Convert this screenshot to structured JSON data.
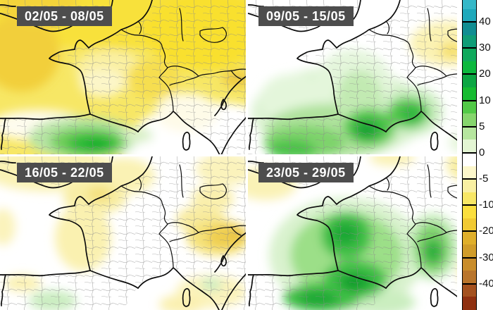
{
  "panels": [
    {
      "label": "02/05 - 08/05"
    },
    {
      "label": "09/05 - 15/05"
    },
    {
      "label": "16/05 - 22/05"
    },
    {
      "label": "23/05 - 29/05"
    }
  ],
  "panel_label_style": {
    "bg": "#4d4d4d",
    "fg": "#ffffff"
  },
  "colorbar": {
    "ticks": [
      "40",
      "30",
      "20",
      "10",
      "5",
      "0",
      "-5",
      "-10",
      "-20",
      "-30",
      "-40"
    ],
    "segments": [
      "#35B8C8",
      "#1FA9BB",
      "#108D92",
      "#0F9D77",
      "#0FA95C",
      "#0CB83E",
      "#0CA643",
      "#16BB31",
      "#52CA47",
      "#86D56D",
      "#B6E69F",
      "#E3F5D3",
      "#FFFFFF",
      "#FCF7CB",
      "#F9F0A3",
      "#F8E765",
      "#FBDF3E",
      "#F1CA33",
      "#DFAF2B",
      "#D09C2A",
      "#C98D2B",
      "#B9752C",
      "#A4511F",
      "#8F3010"
    ]
  }
}
